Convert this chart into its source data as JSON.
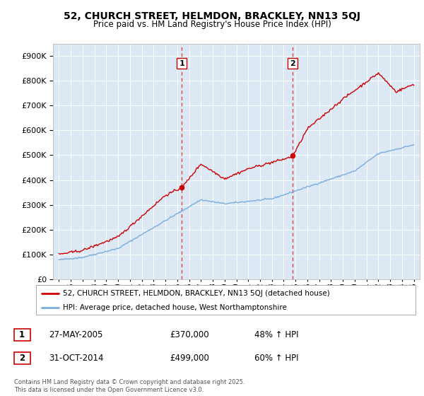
{
  "title1": "52, CHURCH STREET, HELMDON, BRACKLEY, NN13 5QJ",
  "title2": "Price paid vs. HM Land Registry's House Price Index (HPI)",
  "bg_color": "#dce9f5",
  "red_color": "#cc0000",
  "blue_color": "#7aacdc",
  "vline_color": "#cc0000",
  "sale1_price": 370000,
  "sale2_price": 499000,
  "sale1_text": "27-MAY-2005",
  "sale2_text": "31-OCT-2014",
  "sale1_pct": "48% ↑ HPI",
  "sale2_pct": "60% ↑ HPI",
  "legend_red": "52, CHURCH STREET, HELMDON, BRACKLEY, NN13 5QJ (detached house)",
  "legend_blue": "HPI: Average price, detached house, West Northamptonshire",
  "footer": "Contains HM Land Registry data © Crown copyright and database right 2025.\nThis data is licensed under the Open Government Licence v3.0.",
  "ylim": [
    0,
    950000
  ],
  "yticks": [
    0,
    100000,
    200000,
    300000,
    400000,
    500000,
    600000,
    700000,
    800000,
    900000
  ],
  "sale1_x": 2005.375,
  "sale2_x": 2014.75,
  "xmin": 1994.5,
  "xmax": 2025.5
}
